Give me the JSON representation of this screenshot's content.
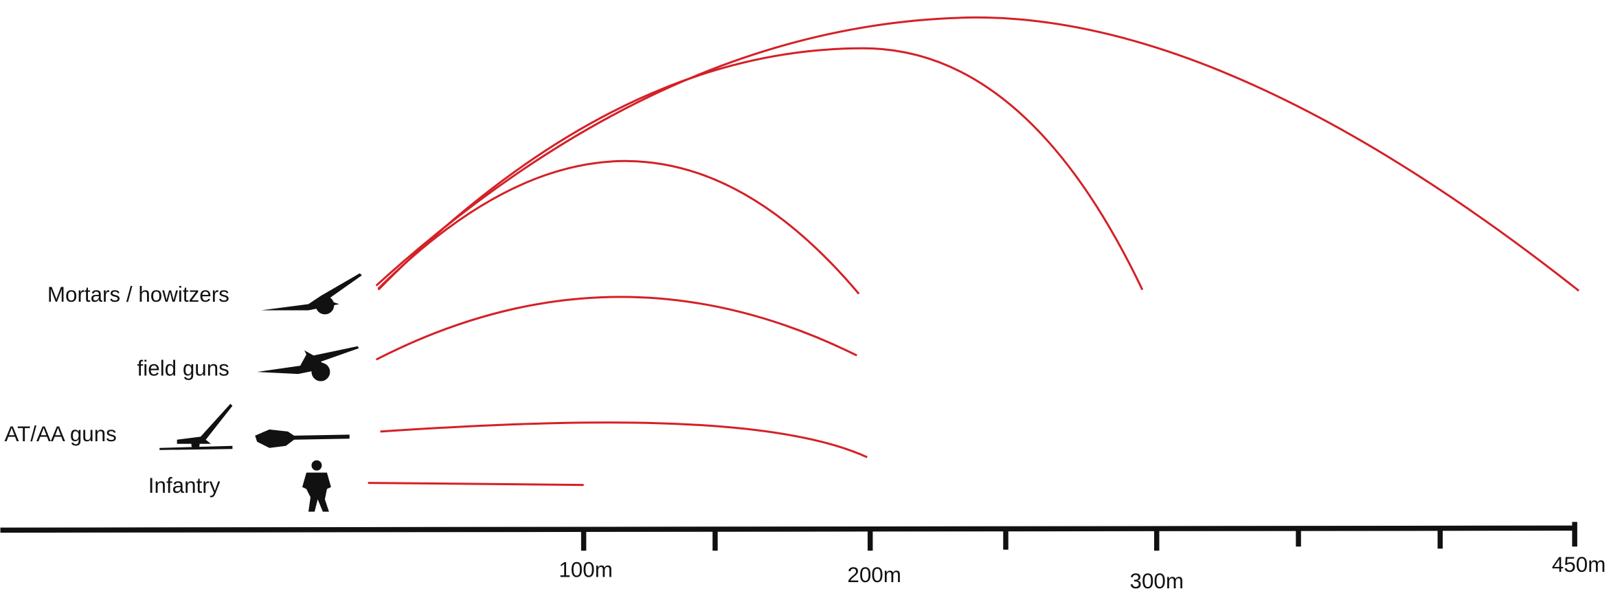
{
  "weapons": [
    "Mortars / howitzers",
    "field guns",
    "AT/AA guns",
    "Infantry"
  ],
  "distances": [
    "100m",
    "200m",
    "300m",
    "450m"
  ]
}
